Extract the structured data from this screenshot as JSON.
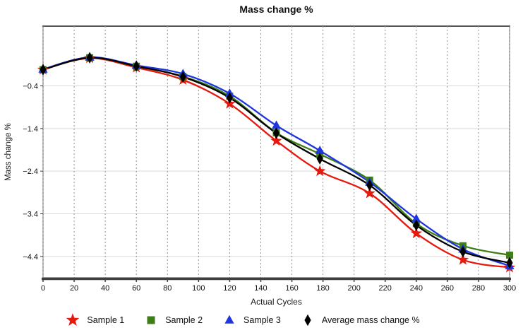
{
  "chart_data": {
    "type": "line",
    "title": "Mass change %",
    "xlabel": "Actual Cycles",
    "ylabel": "Mass change %",
    "x": [
      0,
      30,
      60,
      90,
      120,
      150,
      178,
      210,
      240,
      270,
      300
    ],
    "series": [
      {
        "name": "Sample 1",
        "marker": "star",
        "color": "#e41a0f",
        "values": [
          -0.02,
          0.25,
          0.03,
          -0.26,
          -0.82,
          -1.69,
          -2.4,
          -2.92,
          -3.86,
          -4.48,
          -4.66
        ]
      },
      {
        "name": "Sample 2",
        "marker": "square",
        "color": "#3e7e16",
        "values": [
          -0.02,
          0.26,
          0.06,
          -0.18,
          -0.64,
          -1.5,
          -2.0,
          -2.61,
          -3.63,
          -4.15,
          -4.37
        ]
      },
      {
        "name": "Sample 3",
        "marker": "triangle",
        "color": "#1f35dd",
        "values": [
          -0.01,
          0.27,
          0.08,
          -0.12,
          -0.58,
          -1.33,
          -1.92,
          -2.66,
          -3.52,
          -4.23,
          -4.62
        ]
      },
      {
        "name": "Average mass change %",
        "marker": "diamond",
        "color": "#000000",
        "values": [
          -0.02,
          0.26,
          0.06,
          -0.19,
          -0.68,
          -1.51,
          -2.11,
          -2.73,
          -3.67,
          -4.29,
          -4.55
        ]
      }
    ],
    "xlim": [
      0,
      300
    ],
    "ylim": [
      -4.9,
      1.0
    ],
    "x_ticks": [
      0,
      20,
      40,
      60,
      80,
      100,
      120,
      140,
      160,
      180,
      200,
      220,
      240,
      260,
      280,
      300
    ],
    "y_ticks": [
      -0.4,
      -1.4,
      -2.4,
      -3.4,
      -4.4
    ],
    "grid": {
      "vertical": "dashed",
      "horizontal": "solid"
    },
    "legend_position": "bottom"
  },
  "colors": {
    "grid_vertical": "#8f8f8f",
    "grid_horizontal": "#d9d9d9",
    "frame": "#bdbdbd",
    "frame_top": "#555555",
    "axis": "#3f3f3f",
    "tick_text": "#111111",
    "background": "#ffffff"
  }
}
